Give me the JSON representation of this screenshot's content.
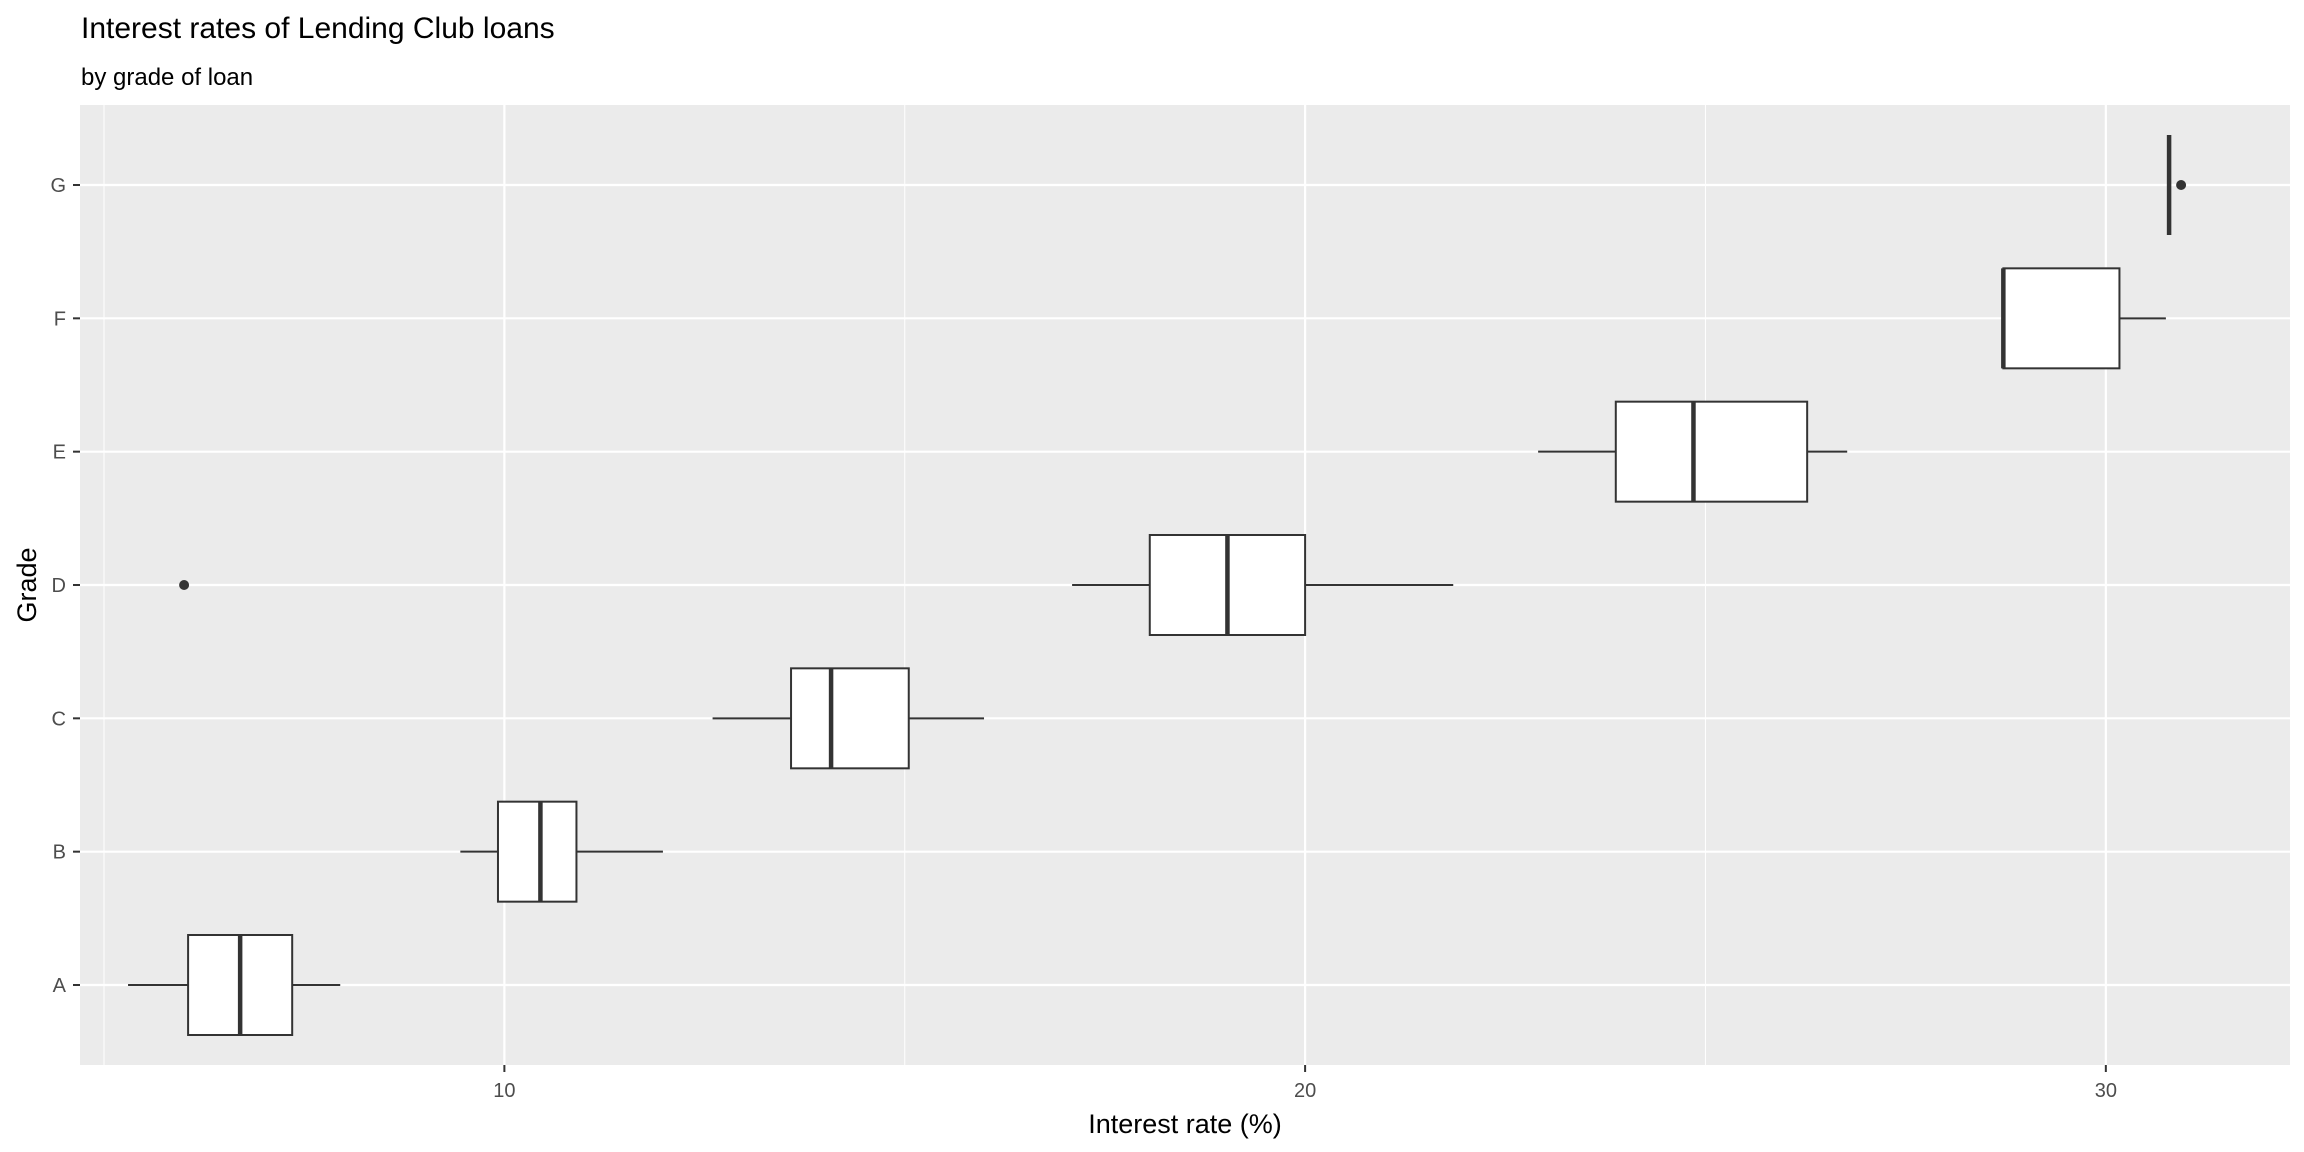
{
  "chart_data": {
    "type": "boxplot",
    "title": "Interest rates of Lending Club loans",
    "subtitle": "by grade of loan",
    "xlabel": "Interest rate (%)",
    "ylabel": "Grade",
    "xlim": [
      4.7,
      32.3
    ],
    "x_ticks": [
      10,
      20,
      30
    ],
    "x_tick_labels": [
      "10",
      "20",
      "30"
    ],
    "categories": [
      "A",
      "B",
      "C",
      "D",
      "E",
      "F",
      "G"
    ],
    "grid": true,
    "legend": "none",
    "boxes": [
      {
        "category": "A",
        "whisker_low": 5.3,
        "q1": 6.05,
        "median": 6.7,
        "q3": 7.35,
        "whisker_high": 7.95,
        "outliers": []
      },
      {
        "category": "B",
        "whisker_low": 9.45,
        "q1": 9.92,
        "median": 10.45,
        "q3": 10.9,
        "whisker_high": 11.98,
        "outliers": []
      },
      {
        "category": "C",
        "whisker_low": 12.6,
        "q1": 13.58,
        "median": 14.08,
        "q3": 15.05,
        "whisker_high": 15.99,
        "outliers": []
      },
      {
        "category": "D",
        "whisker_low": 17.09,
        "q1": 18.06,
        "median": 19.03,
        "q3": 20.0,
        "whisker_high": 21.85,
        "outliers": [
          6.0
        ]
      },
      {
        "category": "E",
        "whisker_low": 22.91,
        "q1": 23.88,
        "median": 24.85,
        "q3": 26.27,
        "whisker_high": 26.77,
        "outliers": []
      },
      {
        "category": "F",
        "whisker_low": 28.72,
        "q1": 28.72,
        "median": 28.72,
        "q3": 30.17,
        "whisker_high": 30.75,
        "outliers": []
      },
      {
        "category": "G",
        "whisker_low": 30.79,
        "q1": 30.79,
        "median": 30.79,
        "q3": 30.79,
        "whisker_high": 30.79,
        "outliers": [
          30.94
        ]
      }
    ]
  },
  "colors": {
    "background": "#ffffff",
    "panel": "#ebebeb",
    "grid": "#ffffff",
    "box_fill": "#ffffff",
    "box_stroke": "#333333",
    "text": "#000000",
    "axis_text": "#4d4d4d",
    "tick": "#333333"
  }
}
